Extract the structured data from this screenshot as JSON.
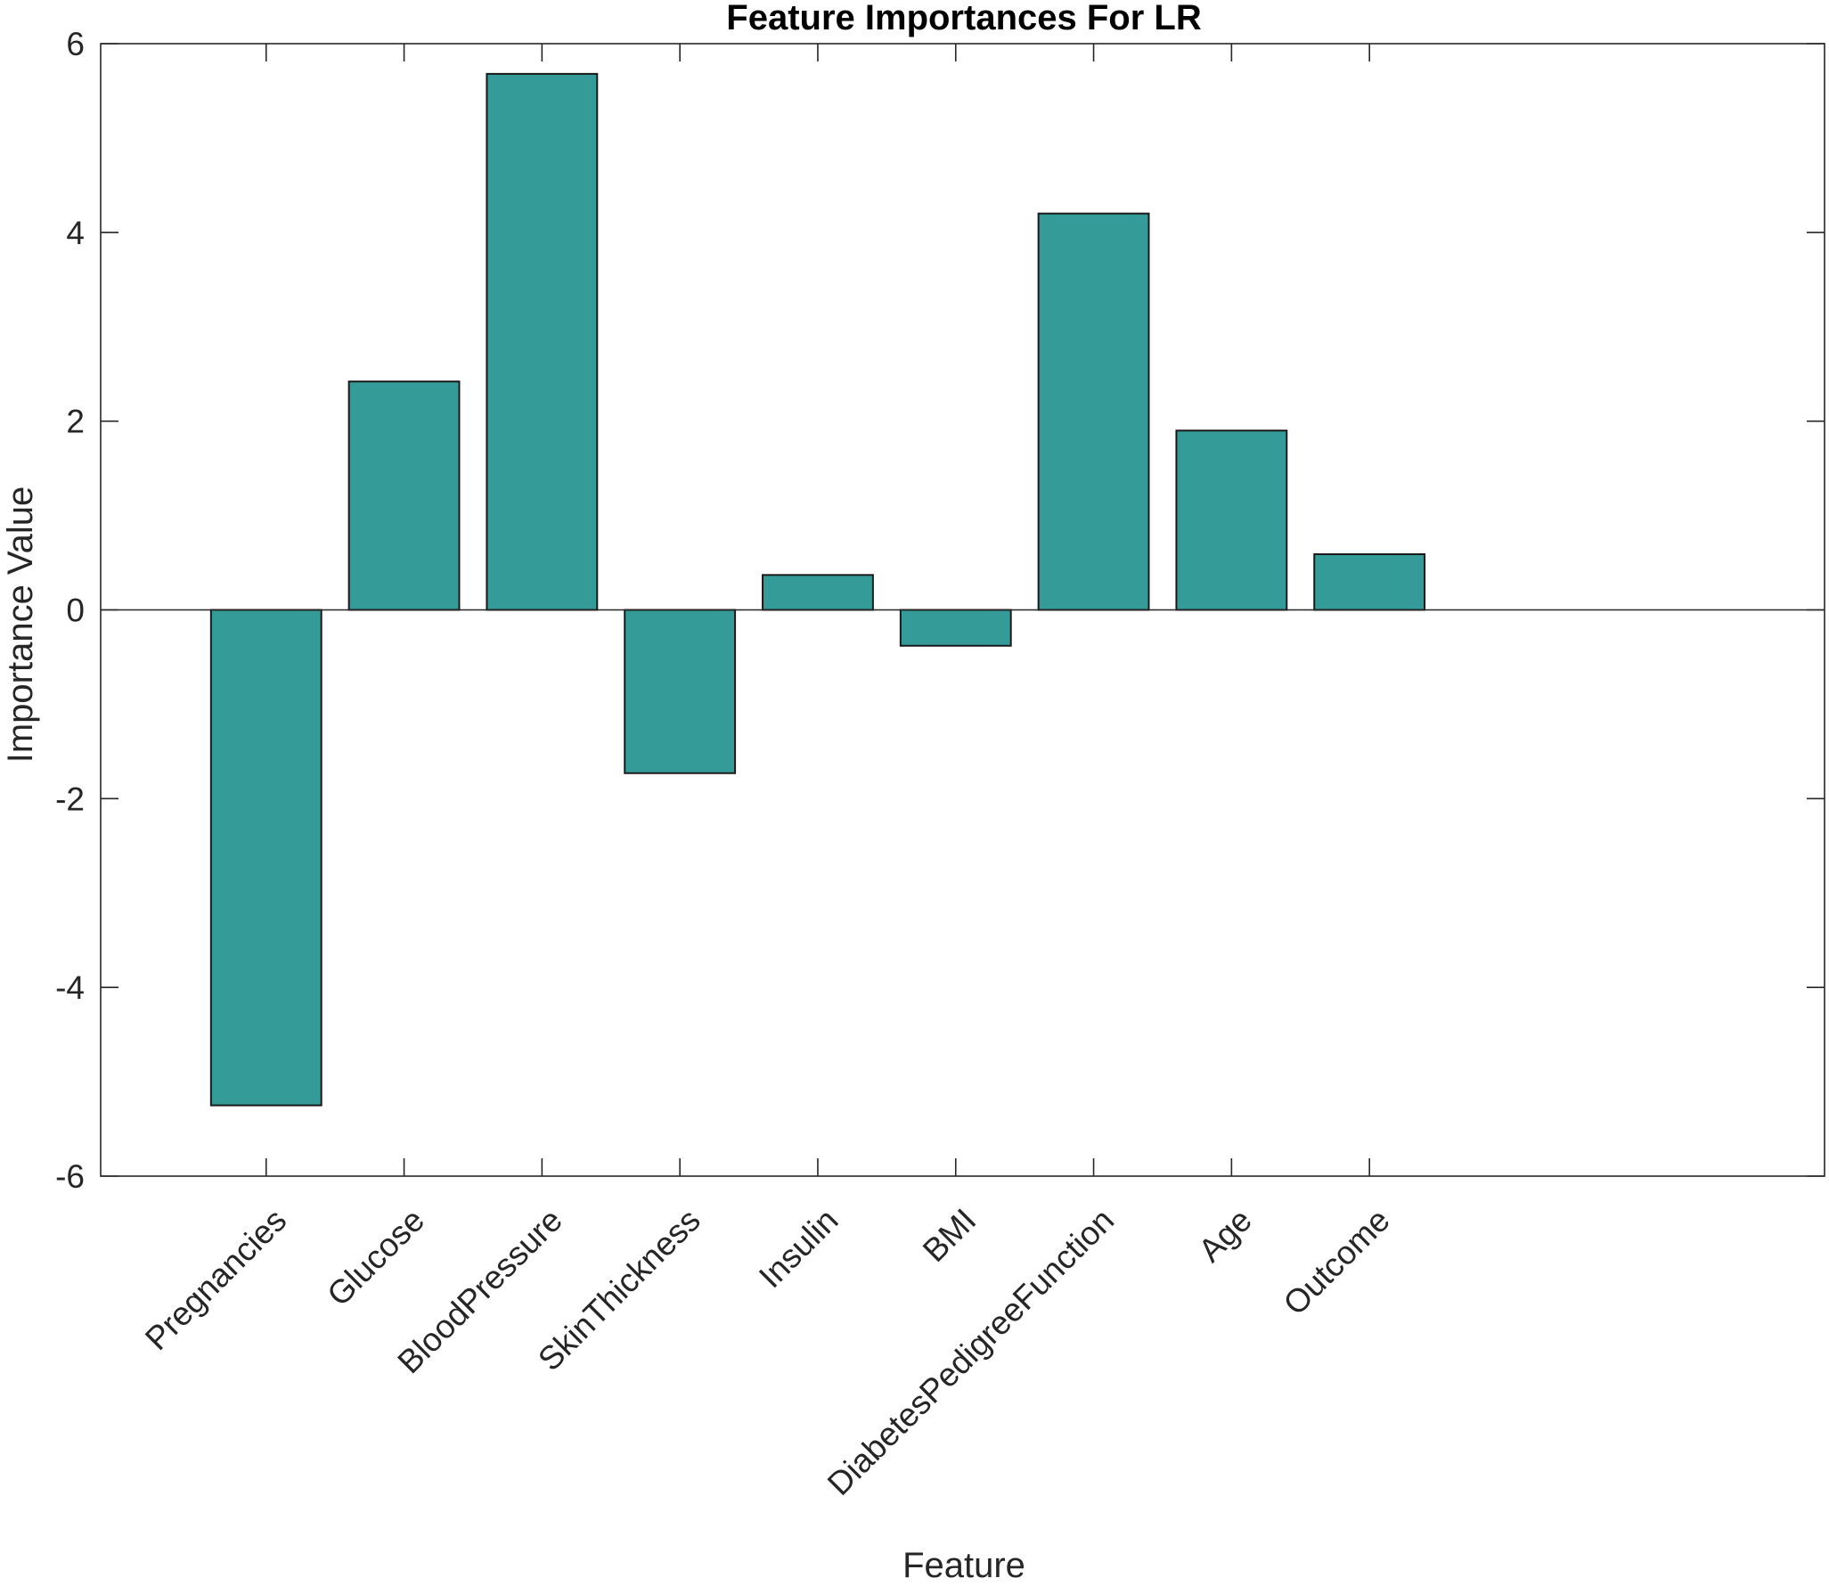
{
  "chart_data": {
    "type": "bar",
    "title": "Feature Importances For LR",
    "xlabel": "Feature",
    "ylabel": "Importance Value",
    "categories": [
      "Pregnancies",
      "Glucose",
      "BloodPressure",
      "SkinThickness",
      "Insulin",
      "BMI",
      "DiabetesPedigreeFunction",
      "Age",
      "Outcome"
    ],
    "values": [
      -5.25,
      2.42,
      5.68,
      -1.73,
      0.37,
      -0.38,
      4.2,
      1.9,
      0.59
    ],
    "ylim": [
      -6,
      6
    ],
    "yticks": [
      -6,
      -4,
      -2,
      0,
      2,
      4,
      6
    ],
    "ytick_labels": [
      "-6",
      "-4",
      "-2",
      "0",
      "2",
      "4",
      "6"
    ],
    "grid": false,
    "bar_color": "#349b98",
    "bar_edge_color": "#1a1a1a"
  }
}
